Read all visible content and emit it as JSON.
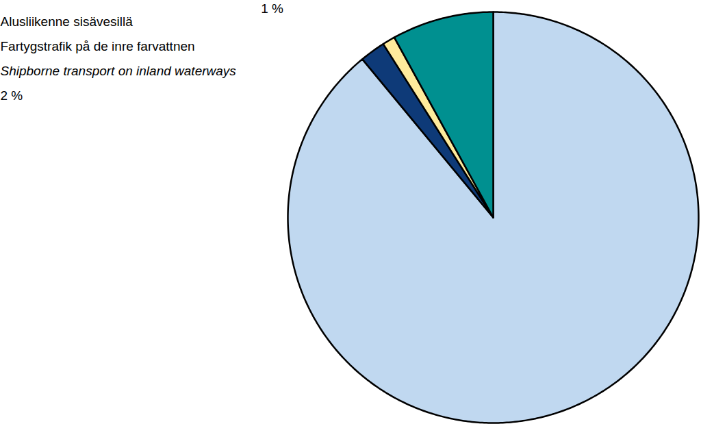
{
  "chart_data": {
    "type": "pie",
    "categories": [
      null,
      "Alusliikenne sisävesillä\nFartygstrafik på de inre farvattnen\nShipborne transport on inland waterways",
      null,
      null
    ],
    "values": [
      89,
      2,
      1,
      8
    ],
    "value_labels": [
      null,
      "2 %",
      "1 %",
      null
    ],
    "colors": [
      "#c0d8f0",
      "#0e3a78",
      "#ffeb9c",
      "#009090"
    ]
  }
}
